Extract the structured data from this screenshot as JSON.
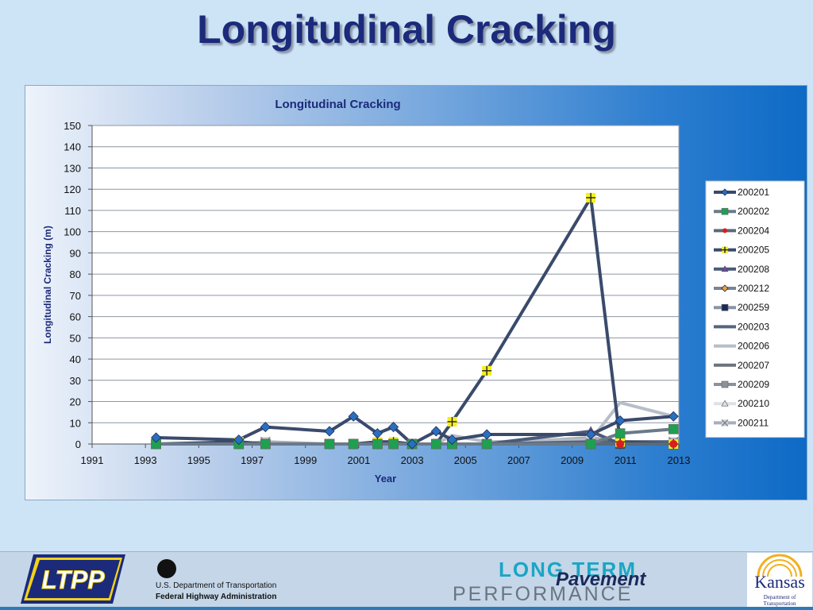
{
  "slide": {
    "title": "Longitudinal Cracking"
  },
  "footer": {
    "ltpp_text": "LTPP",
    "usdot_line1": "U.S. Department of Transportation",
    "usdot_line2": "Federal Highway Administration",
    "ltp_word1": "LONG TERM",
    "ltp_word2": "Pavement",
    "ltp_word3": "PERFORMANCE",
    "kansas_name": "Kansas",
    "kansas_sub": "Department of Transportation"
  },
  "chart_data": {
    "type": "line",
    "title": "Longitudinal Cracking",
    "xlabel": "Year",
    "ylabel": "Longitudinal Cracking (m)",
    "xlim": [
      1991,
      2013
    ],
    "ylim": [
      0,
      150
    ],
    "xticks": [
      "1991",
      "1993",
      "1995",
      "1997",
      "1999",
      "2001",
      "2003",
      "2005",
      "2007",
      "2009",
      "2011",
      "2013"
    ],
    "yticks": [
      "0",
      "10",
      "20",
      "30",
      "40",
      "50",
      "60",
      "70",
      "80",
      "90",
      "100",
      "110",
      "120",
      "130",
      "140",
      "150"
    ],
    "grid": "horizontal",
    "legend_position": "right",
    "series": [
      {
        "name": "200201",
        "color": "#3a4a6b",
        "marker": "diamond",
        "markerColor": "#2a6fbe",
        "points": [
          [
            1993.4,
            3
          ],
          [
            1996.5,
            2
          ],
          [
            1997.5,
            8
          ],
          [
            1999.9,
            6
          ],
          [
            2000.8,
            13
          ],
          [
            2001.7,
            5
          ],
          [
            2002.3,
            8
          ],
          [
            2003.0,
            0
          ],
          [
            2003.9,
            6
          ],
          [
            2004.5,
            2
          ],
          [
            2005.8,
            4.5
          ],
          [
            2009.7,
            4.5
          ],
          [
            2010.8,
            11
          ],
          [
            2012.8,
            13
          ]
        ]
      },
      {
        "name": "200202",
        "color": "#6a7a8a",
        "marker": "square",
        "markerColor": "#1fa050",
        "points": [
          [
            1993.4,
            0
          ],
          [
            1996.5,
            0
          ],
          [
            1997.5,
            0
          ],
          [
            1999.9,
            0
          ],
          [
            2000.8,
            0
          ],
          [
            2001.7,
            0
          ],
          [
            2002.3,
            0
          ],
          [
            2003.0,
            0
          ],
          [
            2003.9,
            0
          ],
          [
            2004.5,
            0
          ],
          [
            2005.8,
            0
          ],
          [
            2009.7,
            0
          ],
          [
            2010.8,
            5
          ],
          [
            2012.8,
            7
          ]
        ]
      },
      {
        "name": "200204",
        "color": "#5a6a7a",
        "marker": "circle",
        "markerColor": "#d81e1e",
        "points": [
          [
            1993.4,
            0
          ],
          [
            1996.5,
            0
          ],
          [
            1997.5,
            0
          ],
          [
            1999.9,
            0
          ],
          [
            2000.8,
            0
          ],
          [
            2001.7,
            0
          ],
          [
            2002.3,
            0
          ],
          [
            2003.0,
            0
          ],
          [
            2003.9,
            0
          ],
          [
            2004.5,
            0
          ],
          [
            2005.8,
            0
          ],
          [
            2009.7,
            0
          ],
          [
            2010.8,
            0
          ],
          [
            2012.8,
            0
          ]
        ]
      },
      {
        "name": "200205",
        "color": "#3a4a6b",
        "marker": "plus",
        "markerColor": "#f5ef1a",
        "points": [
          [
            1993.4,
            0
          ],
          [
            1996.5,
            1
          ],
          [
            1997.5,
            0
          ],
          [
            1999.9,
            0
          ],
          [
            2000.8,
            0
          ],
          [
            2001.7,
            1
          ],
          [
            2002.3,
            1
          ],
          [
            2003.0,
            0
          ],
          [
            2003.9,
            0
          ],
          [
            2004.5,
            10.5
          ],
          [
            2005.8,
            34.5
          ],
          [
            2009.7,
            116
          ],
          [
            2010.8,
            1
          ],
          [
            2012.8,
            0
          ]
        ]
      },
      {
        "name": "200208",
        "color": "#4a5a7a",
        "marker": "triangle",
        "markerColor": "#6a4aa0",
        "points": [
          [
            1993.4,
            0
          ],
          [
            1996.5,
            0
          ],
          [
            1997.5,
            0
          ],
          [
            1999.9,
            0
          ],
          [
            2000.8,
            0
          ],
          [
            2001.7,
            0
          ],
          [
            2002.3,
            0
          ],
          [
            2003.0,
            0
          ],
          [
            2003.9,
            0
          ],
          [
            2004.5,
            0
          ],
          [
            2005.8,
            0
          ],
          [
            2009.7,
            6
          ],
          [
            2010.8,
            0
          ],
          [
            2012.8,
            0
          ]
        ]
      },
      {
        "name": "200212",
        "color": "#7a8494",
        "marker": "diamond",
        "markerColor": "#f0a030",
        "points": [
          [
            1993.4,
            0
          ],
          [
            1996.5,
            0
          ],
          [
            1997.5,
            0
          ],
          [
            1999.9,
            0
          ],
          [
            2000.8,
            0
          ],
          [
            2001.7,
            0
          ],
          [
            2002.3,
            0
          ],
          [
            2003.0,
            0
          ],
          [
            2003.9,
            0
          ],
          [
            2004.5,
            0
          ],
          [
            2005.8,
            0
          ],
          [
            2009.7,
            0
          ],
          [
            2010.8,
            0
          ],
          [
            2012.8,
            0
          ]
        ]
      },
      {
        "name": "200259",
        "color": "#8a94a4",
        "marker": "square",
        "markerColor": "#1b2a5a",
        "points": [
          [
            1993.4,
            0
          ],
          [
            1996.5,
            0
          ],
          [
            1997.5,
            0
          ],
          [
            1999.9,
            0
          ],
          [
            2000.8,
            0
          ],
          [
            2001.7,
            0
          ],
          [
            2002.3,
            0
          ],
          [
            2003.0,
            0
          ],
          [
            2003.9,
            0
          ],
          [
            2004.5,
            0
          ],
          [
            2005.8,
            0
          ],
          [
            2009.7,
            0
          ],
          [
            2010.8,
            0
          ],
          [
            2012.8,
            0
          ]
        ]
      },
      {
        "name": "200203",
        "color": "#56657e",
        "marker": "dash",
        "markerColor": "#56657e",
        "points": [
          [
            1993.4,
            0
          ],
          [
            1996.5,
            0
          ],
          [
            1997.5,
            0
          ],
          [
            1999.9,
            0
          ],
          [
            2000.8,
            0
          ],
          [
            2001.7,
            0
          ],
          [
            2002.3,
            0
          ],
          [
            2003.0,
            0
          ],
          [
            2003.9,
            0
          ],
          [
            2004.5,
            0
          ],
          [
            2005.8,
            0
          ],
          [
            2009.7,
            1
          ],
          [
            2010.8,
            1
          ],
          [
            2012.8,
            1
          ]
        ]
      },
      {
        "name": "200206",
        "color": "#b8bec8",
        "marker": "none",
        "markerColor": "#b8bec8",
        "points": [
          [
            1993.4,
            0
          ],
          [
            1996.5,
            0
          ],
          [
            1997.5,
            0
          ],
          [
            1999.9,
            0
          ],
          [
            2000.8,
            0
          ],
          [
            2001.7,
            0
          ],
          [
            2002.3,
            0
          ],
          [
            2003.0,
            0
          ],
          [
            2003.9,
            0
          ],
          [
            2004.5,
            4
          ],
          [
            2005.8,
            1
          ],
          [
            2009.7,
            2
          ],
          [
            2010.8,
            19.5
          ],
          [
            2012.8,
            13
          ]
        ]
      },
      {
        "name": "200207",
        "color": "#6c737c",
        "marker": "none",
        "markerColor": "#6c737c",
        "points": [
          [
            1993.4,
            0
          ],
          [
            1996.5,
            0
          ],
          [
            1997.5,
            0
          ],
          [
            1999.9,
            0
          ],
          [
            2000.8,
            0
          ],
          [
            2001.7,
            0
          ],
          [
            2002.3,
            0
          ],
          [
            2003.0,
            0
          ],
          [
            2003.9,
            0
          ],
          [
            2004.5,
            0
          ],
          [
            2005.8,
            0
          ],
          [
            2009.7,
            0
          ],
          [
            2010.8,
            0
          ],
          [
            2012.8,
            0
          ]
        ]
      },
      {
        "name": "200209",
        "color": "#8c929a",
        "marker": "square",
        "markerColor": "#8c929a",
        "points": [
          [
            1993.4,
            0
          ],
          [
            1996.5,
            0
          ],
          [
            1997.5,
            0
          ],
          [
            1999.9,
            0
          ],
          [
            2000.8,
            0
          ],
          [
            2001.7,
            0
          ],
          [
            2002.3,
            0
          ],
          [
            2003.0,
            0
          ],
          [
            2003.9,
            0
          ],
          [
            2004.5,
            0
          ],
          [
            2005.8,
            0
          ],
          [
            2009.7,
            0
          ],
          [
            2010.8,
            0
          ],
          [
            2012.8,
            0
          ]
        ]
      },
      {
        "name": "200210",
        "color": "#dde2e8",
        "marker": "triangle",
        "markerColor": "#dde2e8",
        "points": [
          [
            1993.4,
            0
          ],
          [
            1996.5,
            0
          ],
          [
            1997.5,
            0
          ],
          [
            1999.9,
            0
          ],
          [
            2000.8,
            0
          ],
          [
            2001.7,
            0
          ],
          [
            2002.3,
            0
          ],
          [
            2003.0,
            0
          ],
          [
            2003.9,
            0
          ],
          [
            2004.5,
            0
          ],
          [
            2005.8,
            0
          ],
          [
            2009.7,
            0
          ],
          [
            2010.8,
            0
          ],
          [
            2012.8,
            0
          ]
        ]
      },
      {
        "name": "200211",
        "color": "#a8aeb6",
        "marker": "x",
        "markerColor": "#a8aeb6",
        "points": [
          [
            1993.4,
            0
          ],
          [
            1996.5,
            0
          ],
          [
            1997.5,
            1
          ],
          [
            1999.9,
            0
          ],
          [
            2000.8,
            0
          ],
          [
            2001.7,
            0
          ],
          [
            2002.3,
            0
          ],
          [
            2003.0,
            0
          ],
          [
            2003.9,
            0
          ],
          [
            2004.5,
            0
          ],
          [
            2005.8,
            0
          ],
          [
            2009.7,
            3
          ],
          [
            2010.8,
            1
          ],
          [
            2012.8,
            1
          ]
        ]
      }
    ]
  }
}
